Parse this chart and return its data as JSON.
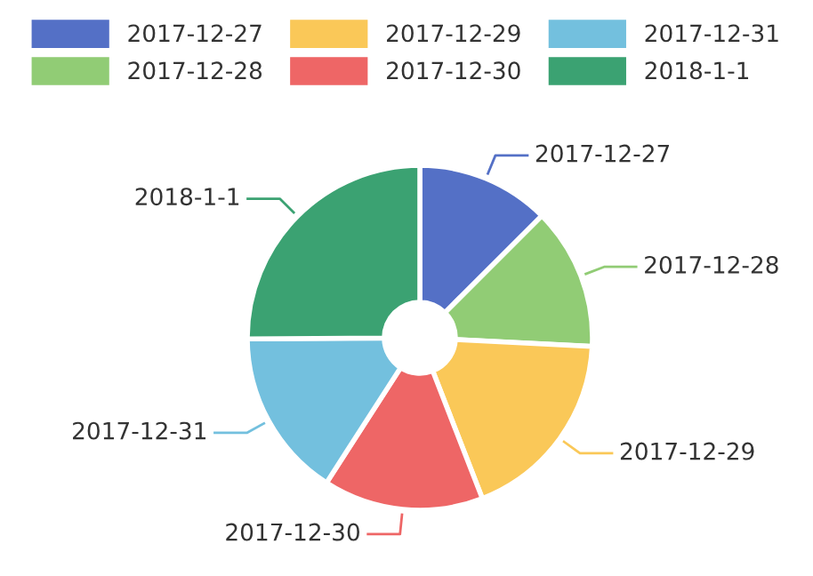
{
  "chart_data": {
    "type": "donut",
    "legend": "top",
    "categories": [
      "2017-12-27",
      "2017-12-28",
      "2017-12-29",
      "2017-12-30",
      "2017-12-31",
      "2018-1-1"
    ],
    "values": [
      12.5,
      13.3,
      18.3,
      15.0,
      15.8,
      25.1
    ],
    "colors": [
      "#5470c6",
      "#91cc75",
      "#fac858",
      "#ee6666",
      "#73c0de",
      "#3ba272"
    ]
  }
}
